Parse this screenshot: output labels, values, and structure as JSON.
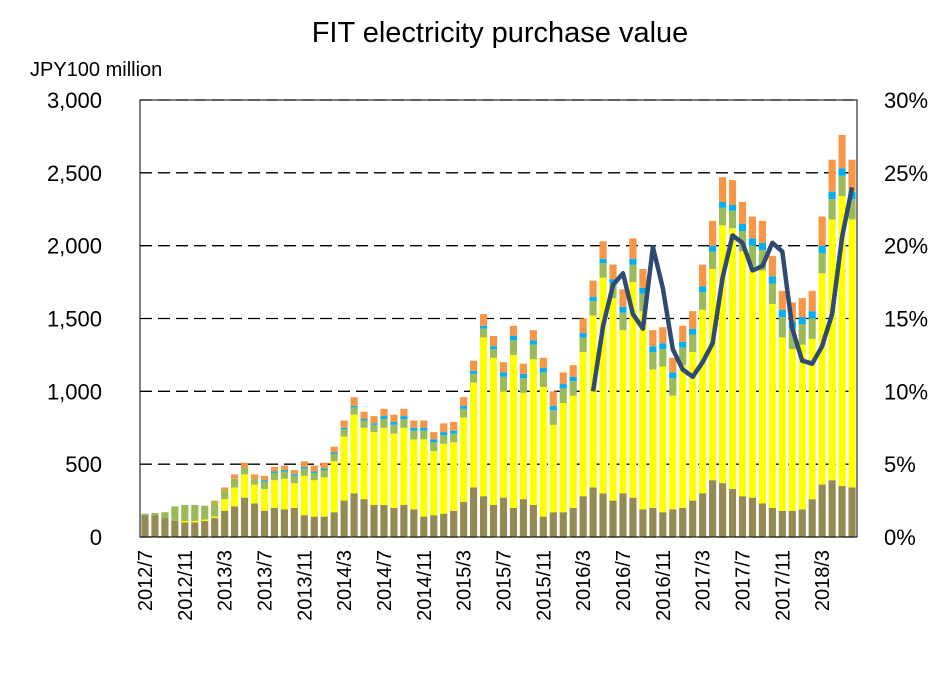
{
  "chart_data": {
    "type": "bar",
    "stacked": true,
    "title": "FIT electricity purchase value",
    "y_label": "JPY100 million",
    "categories": [
      "2012/7",
      null,
      null,
      null,
      "2012/11",
      null,
      null,
      null,
      "2013/3",
      null,
      null,
      null,
      "2013/7",
      null,
      null,
      null,
      "2013/11",
      null,
      null,
      null,
      "2014/3",
      null,
      null,
      null,
      "2014/7",
      null,
      null,
      null,
      "2014/11",
      null,
      null,
      null,
      "2015/3",
      null,
      null,
      null,
      "2015/7",
      null,
      null,
      null,
      "2015/11",
      null,
      null,
      null,
      "2016/3",
      null,
      null,
      null,
      "2016/7",
      null,
      null,
      null,
      "2016/11",
      null,
      null,
      null,
      "2017/3",
      null,
      null,
      null,
      "2017/7",
      null,
      null,
      null,
      "2017/11",
      null,
      null,
      null,
      "2018/3",
      null,
      null,
      null
    ],
    "ylim": [
      0,
      3000
    ],
    "yticks": [
      0,
      500,
      {
        "value": 1000,
        "label": "1,000"
      },
      {
        "value": 1500,
        "label": "1,500"
      },
      {
        "value": 2000,
        "label": "2,000"
      },
      {
        "value": 2500,
        "label": "2,500"
      },
      {
        "value": 3000,
        "label": "3,000"
      }
    ],
    "y2lim": [
      0,
      30
    ],
    "y2ticks": [
      {
        "value": 0,
        "label": "0%"
      },
      {
        "value": 5,
        "label": "5%"
      },
      {
        "value": 10,
        "label": "10%"
      },
      {
        "value": 15,
        "label": "15%"
      },
      {
        "value": 20,
        "label": "20%"
      },
      {
        "value": 25,
        "label": "25%"
      },
      {
        "value": 30,
        "label": "30%"
      }
    ],
    "grid": true,
    "series": [
      {
        "color": "#948a54",
        "values": [
          150,
          150,
          130,
          110,
          100,
          100,
          110,
          130,
          180,
          210,
          270,
          230,
          180,
          200,
          190,
          200,
          150,
          140,
          140,
          170,
          250,
          300,
          260,
          220,
          220,
          200,
          220,
          190,
          140,
          150,
          160,
          180,
          240,
          340,
          280,
          220,
          270,
          200,
          260,
          220,
          140,
          170,
          170,
          200,
          280,
          340,
          300,
          250,
          300,
          270,
          190,
          200,
          170,
          190,
          200,
          250,
          300,
          390,
          370,
          330,
          280,
          270,
          230,
          200,
          180,
          180,
          190,
          260,
          360,
          390,
          350,
          340
        ]
      },
      {
        "color": "#ffff00",
        "values": [
          0,
          0,
          0,
          0,
          10,
          10,
          10,
          10,
          80,
          130,
          160,
          130,
          150,
          190,
          210,
          170,
          270,
          250,
          270,
          350,
          440,
          540,
          490,
          500,
          530,
          510,
          530,
          480,
          530,
          440,
          480,
          470,
          580,
          720,
          1090,
          1010,
          730,
          1050,
          730,
          1000,
          890,
          600,
          750,
          770,
          990,
          1180,
          1480,
          1390,
          1120,
          1480,
          1360,
          950,
          1000,
          780,
          980,
          1020,
          1260,
          1450,
          1770,
          1790,
          1680,
          1590,
          1600,
          1400,
          1190,
          1110,
          1130,
          1100,
          1450,
          1790,
          1990,
          1840
        ]
      },
      {
        "color": "#9bbb59",
        "values": [
          10,
          15,
          40,
          100,
          110,
          110,
          95,
          100,
          60,
          60,
          50,
          40,
          50,
          50,
          50,
          50,
          50,
          50,
          50,
          50,
          50,
          50,
          50,
          50,
          60,
          60,
          60,
          60,
          60,
          60,
          60,
          60,
          60,
          60,
          60,
          60,
          100,
          100,
          100,
          100,
          100,
          100,
          100,
          100,
          100,
          100,
          100,
          100,
          120,
          120,
          120,
          120,
          120,
          120,
          120,
          120,
          120,
          120,
          120,
          120,
          140,
          140,
          140,
          140,
          140,
          140,
          140,
          140,
          140,
          140,
          140,
          140
        ]
      },
      {
        "color": "#00b0f0",
        "values": [
          0,
          0,
          0,
          0,
          0,
          0,
          0,
          0,
          0,
          0,
          0,
          0,
          10,
          10,
          10,
          10,
          10,
          10,
          10,
          10,
          10,
          10,
          10,
          10,
          20,
          20,
          20,
          20,
          20,
          20,
          20,
          20,
          20,
          20,
          20,
          20,
          30,
          30,
          30,
          30,
          30,
          30,
          30,
          30,
          30,
          30,
          30,
          30,
          40,
          40,
          40,
          40,
          40,
          40,
          40,
          40,
          40,
          40,
          40,
          40,
          50,
          50,
          50,
          50,
          50,
          50,
          50,
          50,
          50,
          50,
          50,
          50
        ]
      },
      {
        "color": "#f79646",
        "values": [
          0,
          0,
          0,
          0,
          0,
          0,
          0,
          10,
          20,
          30,
          30,
          30,
          30,
          30,
          30,
          30,
          40,
          40,
          40,
          40,
          50,
          60,
          50,
          50,
          50,
          50,
          50,
          50,
          50,
          50,
          60,
          60,
          60,
          70,
          80,
          70,
          70,
          70,
          70,
          70,
          70,
          100,
          80,
          80,
          100,
          110,
          120,
          100,
          120,
          140,
          130,
          110,
          110,
          100,
          110,
          120,
          150,
          170,
          170,
          170,
          150,
          150,
          150,
          140,
          130,
          130,
          130,
          140,
          200,
          220,
          230,
          220
        ]
      },
      {
        "type": "line",
        "axis": "y2",
        "color": "#2f4b73",
        "values": [
          null,
          null,
          null,
          null,
          null,
          null,
          null,
          null,
          null,
          null,
          null,
          null,
          null,
          null,
          null,
          null,
          null,
          null,
          null,
          null,
          null,
          null,
          null,
          null,
          null,
          null,
          null,
          null,
          null,
          null,
          null,
          null,
          null,
          null,
          null,
          null,
          null,
          null,
          null,
          null,
          null,
          null,
          null,
          null,
          null,
          10,
          14.5,
          17.3,
          18.1,
          15.3,
          14.3,
          19.9,
          17.1,
          12.9,
          11.5,
          11,
          12,
          13.3,
          17.8,
          20.7,
          20.2,
          18.3,
          18.6,
          20.2,
          19.6,
          14.3,
          12.1,
          11.9,
          13.1,
          15.3,
          20.6,
          24
        ]
      }
    ]
  }
}
